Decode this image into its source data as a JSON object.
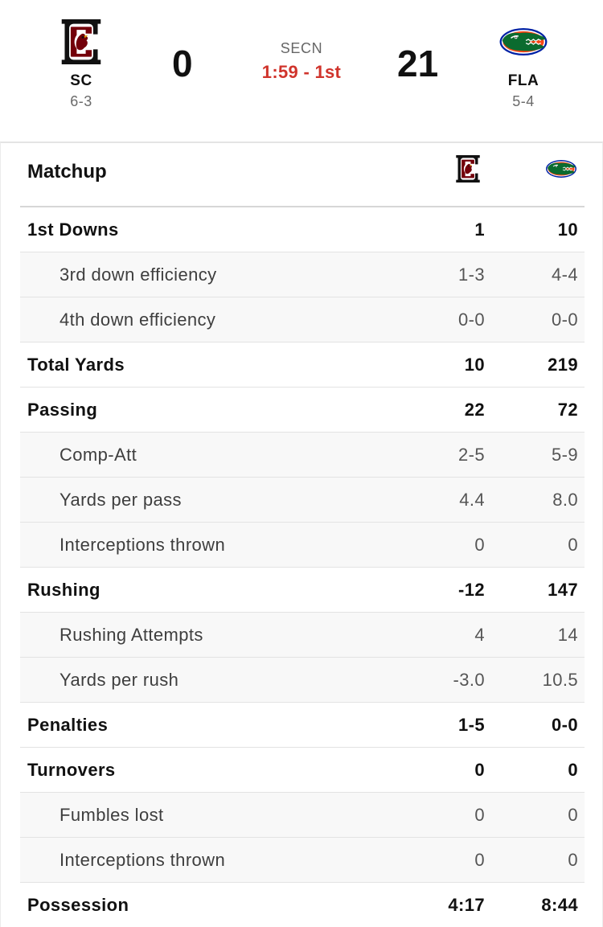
{
  "header": {
    "away": {
      "abbr": "SC",
      "record": "6-3",
      "score": "0",
      "logo_icon": "gamecock-logo",
      "color": "#73000a"
    },
    "home": {
      "abbr": "FLA",
      "record": "5-4",
      "score": "21",
      "logo_icon": "gator-logo",
      "color": "#0021a5"
    },
    "network": "SECN",
    "clock": "1:59 - 1st",
    "clock_color": "#d0342c"
  },
  "matchup": {
    "title": "Matchup",
    "rows": [
      {
        "label": "1st Downs",
        "away": "1",
        "home": "10",
        "level": "main"
      },
      {
        "label": "3rd down efficiency",
        "away": "1-3",
        "home": "4-4",
        "level": "sub"
      },
      {
        "label": "4th down efficiency",
        "away": "0-0",
        "home": "0-0",
        "level": "sub"
      },
      {
        "label": "Total Yards",
        "away": "10",
        "home": "219",
        "level": "main"
      },
      {
        "label": "Passing",
        "away": "22",
        "home": "72",
        "level": "main"
      },
      {
        "label": "Comp-Att",
        "away": "2-5",
        "home": "5-9",
        "level": "sub"
      },
      {
        "label": "Yards per pass",
        "away": "4.4",
        "home": "8.0",
        "level": "sub"
      },
      {
        "label": "Interceptions thrown",
        "away": "0",
        "home": "0",
        "level": "sub"
      },
      {
        "label": "Rushing",
        "away": "-12",
        "home": "147",
        "level": "main"
      },
      {
        "label": "Rushing Attempts",
        "away": "4",
        "home": "14",
        "level": "sub"
      },
      {
        "label": "Yards per rush",
        "away": "-3.0",
        "home": "10.5",
        "level": "sub"
      },
      {
        "label": "Penalties",
        "away": "1-5",
        "home": "0-0",
        "level": "main"
      },
      {
        "label": "Turnovers",
        "away": "0",
        "home": "0",
        "level": "main"
      },
      {
        "label": "Fumbles lost",
        "away": "0",
        "home": "0",
        "level": "sub"
      },
      {
        "label": "Interceptions thrown",
        "away": "0",
        "home": "0",
        "level": "sub"
      },
      {
        "label": "Possession",
        "away": "4:17",
        "home": "8:44",
        "level": "main"
      }
    ]
  }
}
